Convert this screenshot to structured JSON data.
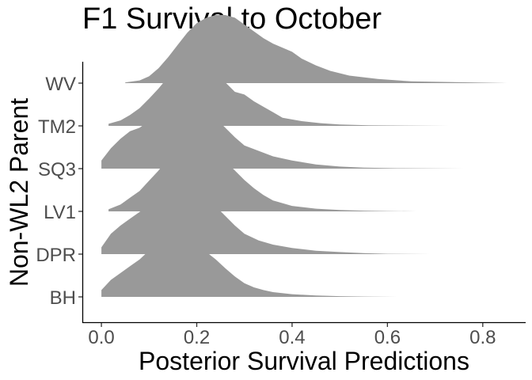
{
  "chart_data": {
    "type": "ridgeline",
    "title": "F1 Survival to October",
    "xlabel": "Posterior Survival Predictions",
    "ylabel": "Non-WL2 Parent",
    "xlim": [
      -0.04,
      0.89
    ],
    "x_ticks": [
      0.0,
      0.2,
      0.4,
      0.6,
      0.8
    ],
    "x_tick_labels": [
      "0.0",
      "0.2",
      "0.4",
      "0.6",
      "0.8"
    ],
    "grid": false,
    "legend": "none",
    "fill_color": "#999999",
    "categories": [
      "BH",
      "DPR",
      "LV1",
      "SQ3",
      "TM2",
      "WV"
    ],
    "series": [
      {
        "category": "BH",
        "x": [
          0.0,
          0.02,
          0.04,
          0.06,
          0.08,
          0.1,
          0.12,
          0.14,
          0.16,
          0.18,
          0.2,
          0.22,
          0.24,
          0.26,
          0.28,
          0.3,
          0.32,
          0.34,
          0.36,
          0.4,
          0.45,
          0.5,
          0.55,
          0.62
        ],
        "density": [
          0.1,
          0.25,
          0.35,
          0.45,
          0.55,
          0.68,
          0.76,
          0.88,
          0.84,
          0.86,
          0.78,
          0.66,
          0.55,
          0.42,
          0.3,
          0.2,
          0.14,
          0.1,
          0.07,
          0.04,
          0.02,
          0.01,
          0.005,
          0.0
        ]
      },
      {
        "category": "DPR",
        "x": [
          0.0,
          0.02,
          0.04,
          0.06,
          0.08,
          0.1,
          0.12,
          0.14,
          0.16,
          0.18,
          0.2,
          0.22,
          0.24,
          0.26,
          0.28,
          0.3,
          0.33,
          0.36,
          0.4,
          0.45,
          0.5,
          0.55,
          0.6,
          0.69
        ],
        "density": [
          0.1,
          0.3,
          0.42,
          0.52,
          0.62,
          0.72,
          0.84,
          0.93,
          0.98,
          0.96,
          0.92,
          0.82,
          0.7,
          0.56,
          0.42,
          0.3,
          0.2,
          0.14,
          0.09,
          0.05,
          0.03,
          0.015,
          0.005,
          0.0
        ]
      },
      {
        "category": "LV1",
        "x": [
          0.015,
          0.04,
          0.06,
          0.08,
          0.1,
          0.12,
          0.14,
          0.16,
          0.18,
          0.2,
          0.22,
          0.24,
          0.26,
          0.28,
          0.3,
          0.32,
          0.34,
          0.36,
          0.4,
          0.45,
          0.5,
          0.55,
          0.6,
          0.66
        ],
        "density": [
          0.03,
          0.1,
          0.2,
          0.3,
          0.45,
          0.6,
          0.78,
          0.92,
          1.0,
          0.98,
          0.92,
          0.84,
          0.74,
          0.6,
          0.46,
          0.34,
          0.24,
          0.16,
          0.08,
          0.04,
          0.02,
          0.01,
          0.005,
          0.0
        ]
      },
      {
        "category": "SQ3",
        "x": [
          0.0,
          0.02,
          0.04,
          0.06,
          0.08,
          0.1,
          0.12,
          0.14,
          0.16,
          0.18,
          0.2,
          0.22,
          0.24,
          0.26,
          0.28,
          0.3,
          0.33,
          0.36,
          0.4,
          0.45,
          0.5,
          0.55,
          0.62,
          0.76
        ],
        "density": [
          0.12,
          0.3,
          0.44,
          0.55,
          0.6,
          0.7,
          0.8,
          0.86,
          0.92,
          0.94,
          0.88,
          0.84,
          0.74,
          0.6,
          0.46,
          0.34,
          0.26,
          0.18,
          0.12,
          0.06,
          0.03,
          0.015,
          0.006,
          0.0
        ]
      },
      {
        "category": "TM2",
        "x": [
          0.015,
          0.04,
          0.06,
          0.08,
          0.1,
          0.12,
          0.14,
          0.16,
          0.18,
          0.2,
          0.22,
          0.24,
          0.26,
          0.28,
          0.3,
          0.32,
          0.34,
          0.36,
          0.38,
          0.42,
          0.46,
          0.5,
          0.56,
          0.73
        ],
        "density": [
          0.03,
          0.08,
          0.16,
          0.26,
          0.4,
          0.55,
          0.72,
          0.88,
          1.0,
          1.0,
          0.92,
          0.78,
          0.64,
          0.5,
          0.46,
          0.36,
          0.28,
          0.2,
          0.12,
          0.07,
          0.04,
          0.02,
          0.008,
          0.0
        ]
      },
      {
        "category": "WV",
        "x": [
          0.05,
          0.08,
          0.1,
          0.12,
          0.14,
          0.16,
          0.18,
          0.2,
          0.22,
          0.24,
          0.26,
          0.28,
          0.3,
          0.32,
          0.34,
          0.36,
          0.38,
          0.4,
          0.42,
          0.45,
          0.48,
          0.52,
          0.58,
          0.65,
          0.85
        ],
        "density": [
          0.01,
          0.04,
          0.1,
          0.22,
          0.38,
          0.56,
          0.74,
          0.88,
          0.96,
          1.0,
          1.0,
          0.96,
          0.86,
          0.76,
          0.66,
          0.58,
          0.52,
          0.46,
          0.36,
          0.26,
          0.18,
          0.11,
          0.06,
          0.025,
          0.0
        ]
      }
    ]
  }
}
